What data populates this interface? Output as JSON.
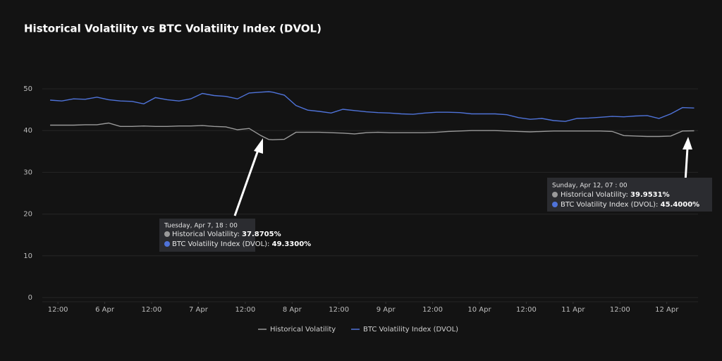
{
  "chart_data": {
    "type": "line",
    "title": "Historical Volatility vs BTC Volatility Index (DVOL)",
    "x": [
      "Apr 5, 10:00",
      "Apr 5, 13:00",
      "Apr 5, 16:00",
      "Apr 5, 19:00",
      "Apr 5, 22:00",
      "Apr 6, 01:00",
      "Apr 6, 04:00",
      "Apr 6, 07:00",
      "Apr 6, 10:00",
      "Apr 6, 13:00",
      "Apr 6, 16:00",
      "Apr 6, 19:00",
      "Apr 6, 22:00",
      "Apr 7, 01:00",
      "Apr 7, 04:00",
      "Apr 7, 07:00",
      "Apr 7, 10:00",
      "Apr 7, 13:00",
      "Apr 7, 16:00",
      "Apr 7, 18:00",
      "Apr 7, 19:00",
      "Apr 7, 22:00",
      "Apr 8, 01:00",
      "Apr 8, 04:00",
      "Apr 8, 07:00",
      "Apr 8, 10:00",
      "Apr 8, 13:00",
      "Apr 8, 16:00",
      "Apr 8, 19:00",
      "Apr 8, 22:00",
      "Apr 9, 01:00",
      "Apr 9, 04:00",
      "Apr 9, 07:00",
      "Apr 9, 10:00",
      "Apr 9, 13:00",
      "Apr 9, 16:00",
      "Apr 9, 19:00",
      "Apr 9, 22:00",
      "Apr 10, 01:00",
      "Apr 10, 04:00",
      "Apr 10, 07:00",
      "Apr 10, 10:00",
      "Apr 10, 13:00",
      "Apr 10, 16:00",
      "Apr 10, 19:00",
      "Apr 10, 22:00",
      "Apr 11, 01:00",
      "Apr 11, 04:00",
      "Apr 11, 07:00",
      "Apr 11, 10:00",
      "Apr 11, 13:00",
      "Apr 11, 16:00",
      "Apr 11, 19:00",
      "Apr 11, 22:00",
      "Apr 12, 01:00",
      "Apr 12, 04:00",
      "Apr 12, 07:00"
    ],
    "series": [
      {
        "name": "Historical Volatility",
        "color": "#9a9a9a",
        "values": [
          41.3,
          41.3,
          41.3,
          41.4,
          41.4,
          41.8,
          41.0,
          41.0,
          41.1,
          41.0,
          41.0,
          41.1,
          41.1,
          41.2,
          41.0,
          40.9,
          40.2,
          40.5,
          38.8,
          37.8705,
          37.8,
          37.9,
          39.6,
          39.6,
          39.6,
          39.5,
          39.4,
          39.2,
          39.5,
          39.6,
          39.5,
          39.5,
          39.5,
          39.5,
          39.6,
          39.8,
          39.9,
          40.0,
          40.0,
          40.0,
          39.9,
          39.8,
          39.7,
          39.8,
          39.9,
          39.9,
          39.9,
          39.9,
          39.9,
          39.8,
          38.8,
          38.7,
          38.6,
          38.6,
          38.7,
          39.9,
          39.9531
        ]
      },
      {
        "name": "BTC Volatility Index (DVOL)",
        "color": "#4f73d9",
        "values": [
          47.3,
          47.1,
          47.6,
          47.5,
          48.0,
          47.4,
          47.1,
          47.0,
          46.4,
          47.9,
          47.4,
          47.1,
          47.6,
          48.9,
          48.4,
          48.2,
          47.6,
          49.0,
          49.2,
          49.33,
          49.2,
          48.5,
          46.0,
          44.9,
          44.6,
          44.2,
          45.1,
          44.8,
          44.5,
          44.3,
          44.2,
          44.0,
          43.9,
          44.2,
          44.4,
          44.4,
          44.3,
          44.0,
          44.0,
          44.0,
          43.8,
          43.1,
          42.7,
          42.9,
          42.4,
          42.2,
          42.9,
          43.0,
          43.2,
          43.4,
          43.3,
          43.5,
          43.6,
          42.9,
          44.0,
          45.5,
          45.4
        ]
      }
    ],
    "xlim": [
      "Apr 5, 08:00",
      "Apr 12, 08:00"
    ],
    "xticks": [
      {
        "value": "Apr 5, 12:00",
        "label": "12:00"
      },
      {
        "value": "Apr 6, 00:00",
        "label": "6 Apr"
      },
      {
        "value": "Apr 6, 12:00",
        "label": "12:00"
      },
      {
        "value": "Apr 7, 00:00",
        "label": "7 Apr"
      },
      {
        "value": "Apr 7, 12:00",
        "label": "12:00"
      },
      {
        "value": "Apr 8, 00:00",
        "label": "8 Apr"
      },
      {
        "value": "Apr 8, 12:00",
        "label": "12:00"
      },
      {
        "value": "Apr 9, 00:00",
        "label": "9 Apr"
      },
      {
        "value": "Apr 9, 12:00",
        "label": "12:00"
      },
      {
        "value": "Apr 10, 00:00",
        "label": "10 Apr"
      },
      {
        "value": "Apr 10, 12:00",
        "label": "12:00"
      },
      {
        "value": "Apr 11, 00:00",
        "label": "11 Apr"
      },
      {
        "value": "Apr 11, 12:00",
        "label": "12:00"
      },
      {
        "value": "Apr 12, 00:00",
        "label": "12 Apr"
      }
    ],
    "ylim": [
      0,
      50
    ],
    "yticks": [
      0,
      10,
      20,
      30,
      40,
      50
    ],
    "grid": true,
    "tooltips": [
      {
        "title": "Tuesday, Apr 7, 18 : 00",
        "rows": [
          {
            "label": "Historical Volatility:",
            "value": "37.8705%"
          },
          {
            "label": "BTC Volatility Index (DVOL):",
            "value": "49.3300%"
          }
        ]
      },
      {
        "title": "Sunday, Apr 12, 07 : 00",
        "rows": [
          {
            "label": "Historical Volatility:",
            "value": "39.9531%"
          },
          {
            "label": "BTC Volatility Index (DVOL):",
            "value": "45.4000%"
          }
        ]
      }
    ]
  }
}
